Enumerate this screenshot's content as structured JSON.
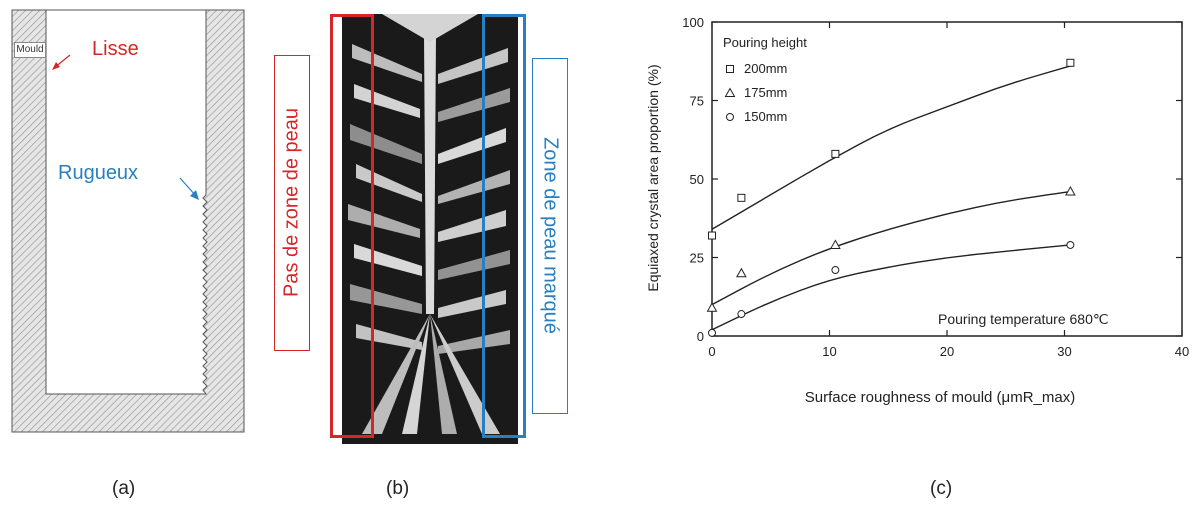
{
  "panel_a": {
    "mould_label": "Mould",
    "smooth_label": "Lisse",
    "rough_label": "Rugueux",
    "caption": "(a)",
    "colors": {
      "smooth": "#d62728",
      "rough": "#2a7fc1"
    }
  },
  "panel_b": {
    "left_label": "Pas de zone de peau",
    "right_label": "Zone de peau marqué",
    "caption": "(b)",
    "colors": {
      "left_box": "#d62728",
      "right_box": "#2a7fc1"
    }
  },
  "panel_c": {
    "caption": "(c)",
    "legend_title": "Pouring height",
    "annotation": "Pouring temperature 680℃",
    "chart_data": {
      "type": "scatter",
      "xlabel": "Surface roughness of mould (μmR_max)",
      "ylabel": "Equiaxed crystal area proportion (%)",
      "xlim": [
        0,
        40
      ],
      "ylim": [
        0,
        100
      ],
      "xticks": [
        "0",
        "10",
        "20",
        "30",
        "40"
      ],
      "yticks": [
        "0",
        "25",
        "50",
        "75",
        "100"
      ],
      "legend_position": "top-left",
      "series": [
        {
          "name": "200mm",
          "marker": "square",
          "x": [
            0,
            2.5,
            10.5,
            30.5
          ],
          "y": [
            32,
            44,
            58,
            87
          ],
          "curve_x": [
            0,
            5,
            10,
            15,
            20,
            25,
            30.5
          ],
          "curve_y": [
            34,
            45,
            56,
            66,
            73,
            80,
            86
          ]
        },
        {
          "name": "175mm",
          "marker": "triangle",
          "x": [
            0,
            2.5,
            10.5,
            30.5
          ],
          "y": [
            9,
            20,
            29,
            46
          ],
          "curve_x": [
            0,
            5,
            10,
            15,
            20,
            25,
            30.5
          ],
          "curve_y": [
            10,
            20,
            28,
            34,
            39,
            43,
            46
          ]
        },
        {
          "name": "150mm",
          "marker": "circle",
          "x": [
            0,
            2.5,
            10.5,
            30.5
          ],
          "y": [
            1,
            7,
            21,
            29
          ],
          "curve_x": [
            0,
            5,
            10,
            15,
            20,
            25,
            30.5
          ],
          "curve_y": [
            2,
            11,
            18,
            22,
            25,
            27,
            29
          ]
        }
      ]
    }
  }
}
